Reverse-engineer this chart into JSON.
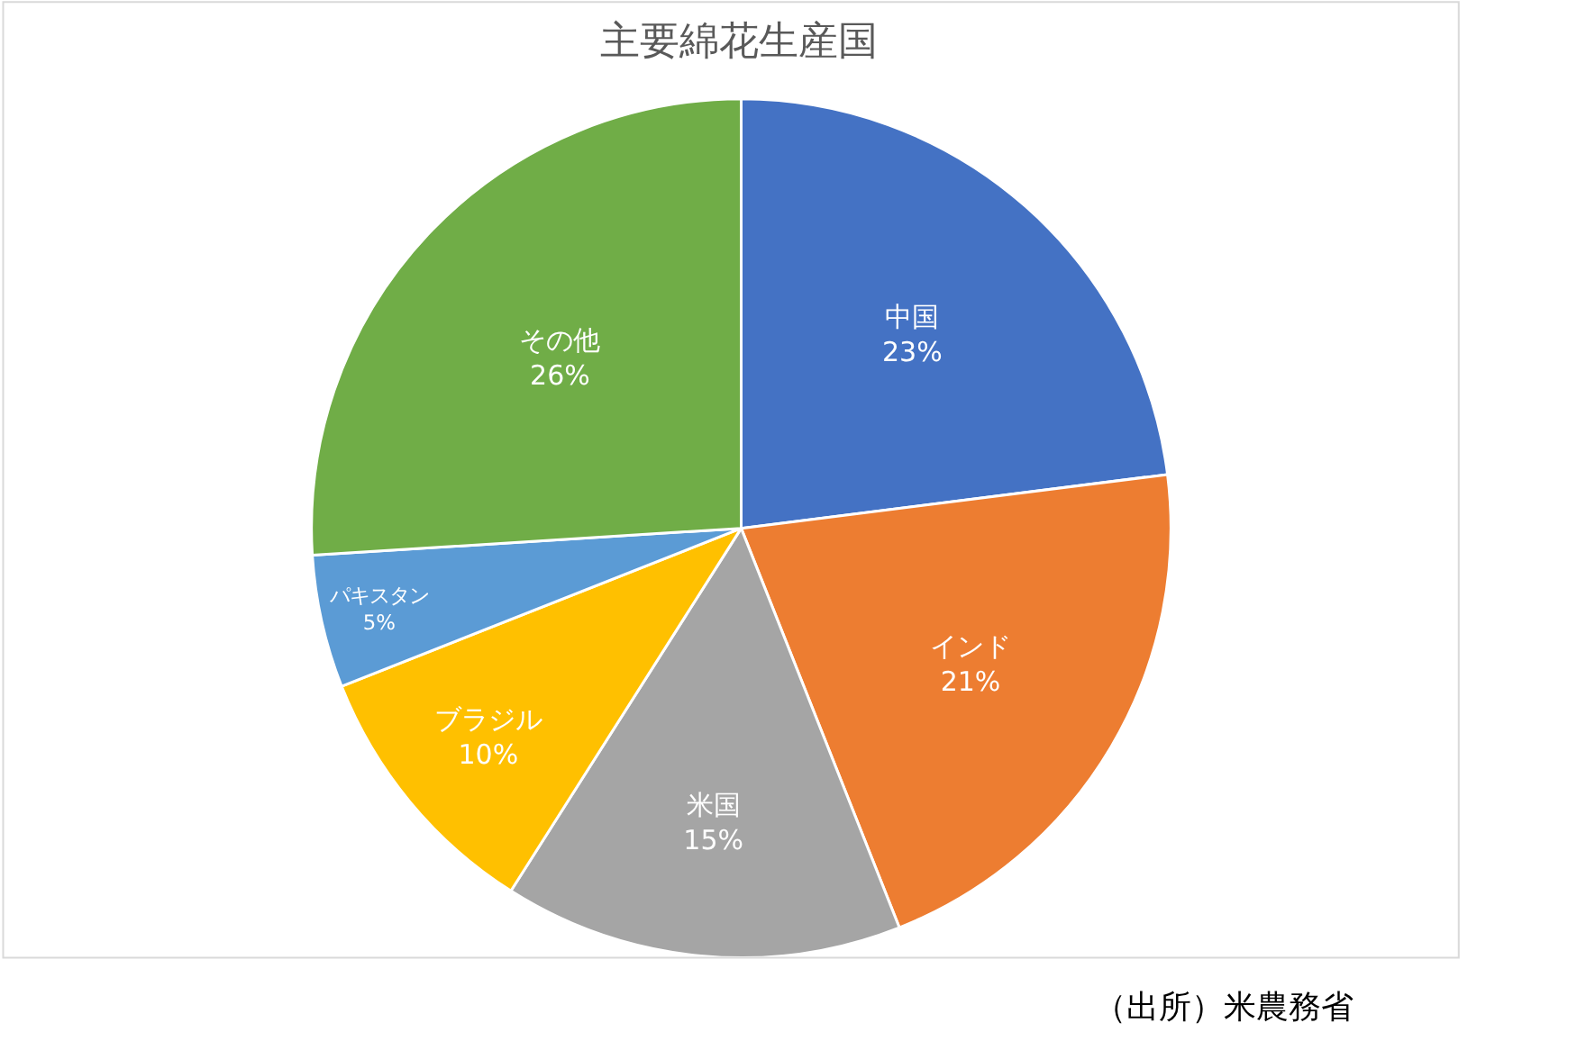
{
  "chart_data": {
    "type": "pie",
    "title": "主要綿花生産国",
    "categories": [
      "中国",
      "インド",
      "米国",
      "ブラジル",
      "パキスタン",
      "その他"
    ],
    "values": [
      23,
      21,
      15,
      10,
      5,
      26
    ],
    "value_labels": [
      "23%",
      "21%",
      "15%",
      "10%",
      "5%",
      "26%"
    ],
    "colors": [
      "#4472c4",
      "#ed7d31",
      "#a5a5a5",
      "#ffc000",
      "#5b9bd5",
      "#70ad47"
    ],
    "annotations": [
      "（出所）米農務省"
    ],
    "legend": false
  }
}
